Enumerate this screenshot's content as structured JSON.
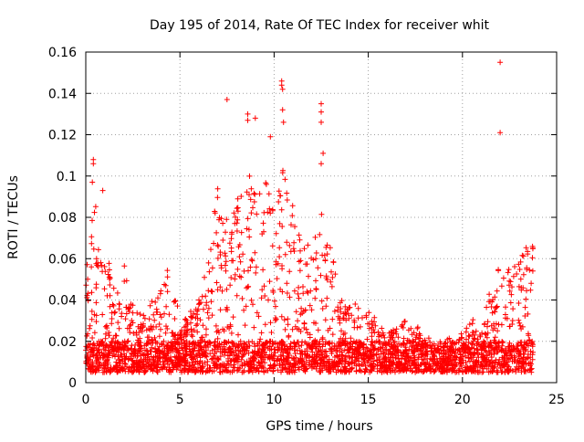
{
  "chart_data": {
    "type": "scatter",
    "title": "Day 195 of 2014, Rate Of TEC Index for receiver whit",
    "xlabel": "GPS time / hours",
    "ylabel": "ROTI / TECUs",
    "xlim": [
      0,
      25
    ],
    "ylim": [
      0,
      0.16
    ],
    "x_ticks": [
      0,
      5,
      10,
      15,
      20,
      25
    ],
    "x_tick_labels": [
      "0",
      "5",
      "10",
      "15",
      "20",
      "25"
    ],
    "y_ticks": [
      0,
      0.02,
      0.04,
      0.06,
      0.08,
      0.1,
      0.12,
      0.14,
      0.16
    ],
    "y_tick_labels": [
      "0",
      "0.02",
      "0.04",
      "0.06",
      "0.08",
      "0.1",
      "0.12",
      "0.14",
      "0.16"
    ],
    "grid": true,
    "marker": "+",
    "series": [
      {
        "name": "ROTI",
        "color": "#ff0000",
        "x_range_hours": [
          0,
          23.75
        ],
        "baseline_range": [
          0.005,
          0.02
        ],
        "envelope": [
          {
            "x": 0.0,
            "y": 0.06
          },
          {
            "x": 0.5,
            "y": 0.09
          },
          {
            "x": 1.0,
            "y": 0.075
          },
          {
            "x": 1.5,
            "y": 0.045
          },
          {
            "x": 2.0,
            "y": 0.06
          },
          {
            "x": 2.5,
            "y": 0.04
          },
          {
            "x": 3.0,
            "y": 0.035
          },
          {
            "x": 4.0,
            "y": 0.045
          },
          {
            "x": 4.5,
            "y": 0.06
          },
          {
            "x": 5.0,
            "y": 0.03
          },
          {
            "x": 6.0,
            "y": 0.04
          },
          {
            "x": 6.5,
            "y": 0.06
          },
          {
            "x": 7.0,
            "y": 0.095
          },
          {
            "x": 7.5,
            "y": 0.08
          },
          {
            "x": 8.0,
            "y": 0.09
          },
          {
            "x": 8.5,
            "y": 0.1
          },
          {
            "x": 9.0,
            "y": 0.1
          },
          {
            "x": 9.5,
            "y": 0.105
          },
          {
            "x": 10.0,
            "y": 0.085
          },
          {
            "x": 10.5,
            "y": 0.11
          },
          {
            "x": 11.0,
            "y": 0.085
          },
          {
            "x": 11.5,
            "y": 0.07
          },
          {
            "x": 12.0,
            "y": 0.065
          },
          {
            "x": 12.5,
            "y": 0.09
          },
          {
            "x": 13.0,
            "y": 0.065
          },
          {
            "x": 13.5,
            "y": 0.045
          },
          {
            "x": 14.0,
            "y": 0.04
          },
          {
            "x": 15.0,
            "y": 0.035
          },
          {
            "x": 16.0,
            "y": 0.025
          },
          {
            "x": 17.0,
            "y": 0.03
          },
          {
            "x": 18.0,
            "y": 0.025
          },
          {
            "x": 19.0,
            "y": 0.02
          },
          {
            "x": 20.0,
            "y": 0.025
          },
          {
            "x": 21.0,
            "y": 0.035
          },
          {
            "x": 21.5,
            "y": 0.045
          },
          {
            "x": 22.0,
            "y": 0.06
          },
          {
            "x": 22.5,
            "y": 0.055
          },
          {
            "x": 23.0,
            "y": 0.06
          },
          {
            "x": 23.5,
            "y": 0.07
          },
          {
            "x": 23.75,
            "y": 0.075
          }
        ],
        "notable_points": [
          {
            "x": 0.4,
            "y": 0.108
          },
          {
            "x": 0.4,
            "y": 0.106
          },
          {
            "x": 0.35,
            "y": 0.097
          },
          {
            "x": 0.9,
            "y": 0.093
          },
          {
            "x": 7.5,
            "y": 0.137
          },
          {
            "x": 8.6,
            "y": 0.13
          },
          {
            "x": 8.6,
            "y": 0.127
          },
          {
            "x": 9.0,
            "y": 0.128
          },
          {
            "x": 9.8,
            "y": 0.119
          },
          {
            "x": 10.4,
            "y": 0.146
          },
          {
            "x": 10.4,
            "y": 0.144
          },
          {
            "x": 10.45,
            "y": 0.142
          },
          {
            "x": 10.45,
            "y": 0.132
          },
          {
            "x": 10.5,
            "y": 0.126
          },
          {
            "x": 12.5,
            "y": 0.135
          },
          {
            "x": 12.5,
            "y": 0.131
          },
          {
            "x": 12.5,
            "y": 0.126
          },
          {
            "x": 12.6,
            "y": 0.111
          },
          {
            "x": 12.5,
            "y": 0.106
          },
          {
            "x": 22.0,
            "y": 0.155
          },
          {
            "x": 22.0,
            "y": 0.121
          }
        ]
      }
    ]
  }
}
